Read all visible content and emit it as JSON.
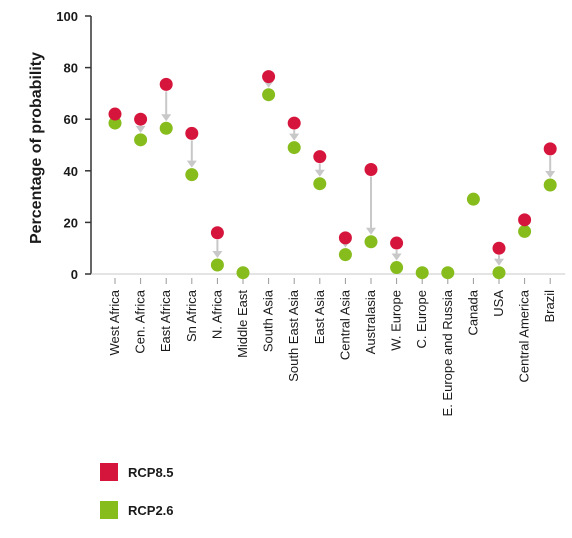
{
  "chart_data": {
    "type": "scatter",
    "ylabel": "Percentage of probability",
    "xlabel": "",
    "ylim": [
      0,
      100
    ],
    "yticks": [
      0,
      20,
      40,
      60,
      80,
      100
    ],
    "categories": [
      "West Africa",
      "Cen. Africa",
      "East Africa",
      "Sn Africa",
      "N. Africa",
      "Middle East",
      "South Asia",
      "South East Asia",
      "East Asia",
      "Central Asia",
      "Australasia",
      "W. Europe",
      "C. Europe",
      "E. Europe and Russia",
      "Canada",
      "USA",
      "Central America",
      "Brazil"
    ],
    "series": [
      {
        "name": "RCP8.5",
        "color": "#d6153c",
        "values": [
          62,
          60,
          73.5,
          54.5,
          16,
          null,
          76.5,
          58.5,
          45.5,
          14,
          40.5,
          12,
          null,
          null,
          null,
          10,
          21,
          48.5
        ]
      },
      {
        "name": "RCP2.6",
        "color": "#86bc1c",
        "values": [
          58.5,
          52,
          56.5,
          38.5,
          3.5,
          0.5,
          69.5,
          49,
          35,
          7.5,
          12.5,
          2.5,
          0.5,
          0.5,
          29,
          0.5,
          16.5,
          34.5
        ]
      }
    ],
    "arrow_color": "#c8c8c8",
    "legend_position": "bottom-left",
    "grid": false
  }
}
